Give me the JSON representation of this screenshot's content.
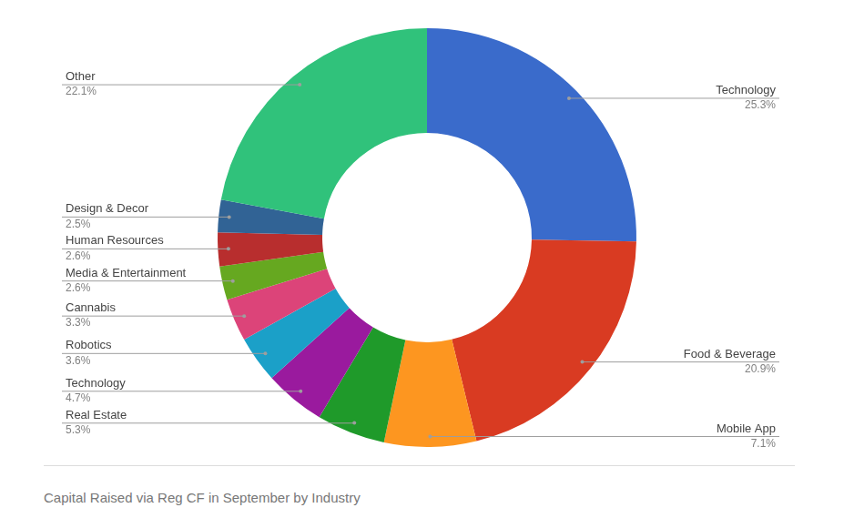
{
  "chart_data": {
    "type": "doughnut",
    "title": "Capital Raised via Reg CF in September by Industry",
    "categories": [
      "Technology",
      "Food & Beverage",
      "Mobile App",
      "Real Estate",
      "Technology",
      "Robotics",
      "Cannabis",
      "Media & Entertainment",
      "Human Resources",
      "Design & Decor",
      "Other"
    ],
    "values": [
      25.3,
      20.9,
      7.1,
      5.3,
      4.7,
      3.6,
      3.3,
      2.6,
      2.6,
      2.5,
      22.1
    ],
    "value_labels": [
      "25.3%",
      "20.9%",
      "7.1%",
      "5.3%",
      "4.7%",
      "3.6%",
      "3.3%",
      "2.6%",
      "2.6%",
      "2.5%",
      "22.1%"
    ],
    "colors": [
      "#3a6bcb",
      "#d93b22",
      "#fd9620",
      "#1f9a2a",
      "#9a1a9e",
      "#1ba0c8",
      "#dc4479",
      "#66a820",
      "#b82e2e",
      "#316395",
      "#30c27b"
    ],
    "data_labels": true
  }
}
